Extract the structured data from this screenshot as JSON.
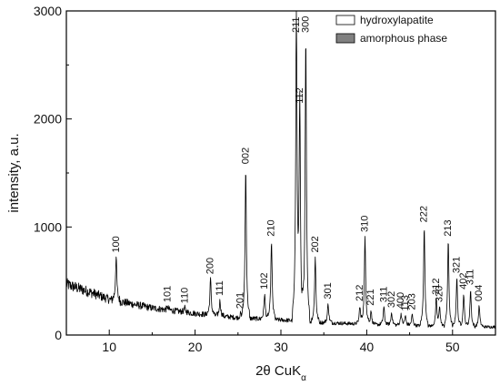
{
  "chart_data": {
    "type": "line",
    "xlabel_main": "2θ CuK",
    "xlabel_sub": "α",
    "ylabel": "intensity, a.u.",
    "xlim": [
      5,
      55
    ],
    "ylim": [
      0,
      3000
    ],
    "x_ticks": [
      10,
      20,
      30,
      40,
      50
    ],
    "y_ticks": [
      0,
      1000,
      2000,
      3000
    ],
    "grid": false,
    "legend_position": "top-right",
    "legend": [
      {
        "label": "hydroxylapatite",
        "swatch": "#ffffff"
      },
      {
        "label": "amorphous phase",
        "swatch": "#808080"
      }
    ],
    "baseline": {
      "x": [
        5,
        8,
        10,
        15,
        20,
        25,
        30,
        35,
        40,
        45,
        50,
        55
      ],
      "y": [
        470,
        390,
        330,
        250,
        200,
        160,
        140,
        115,
        100,
        90,
        80,
        75
      ]
    },
    "peaks": [
      {
        "label": "100",
        "x": 10.8,
        "y": 720
      },
      {
        "label": "101",
        "x": 16.8,
        "y": 260
      },
      {
        "label": "110",
        "x": 18.8,
        "y": 250
      },
      {
        "label": "200",
        "x": 21.8,
        "y": 520
      },
      {
        "label": "111",
        "x": 22.9,
        "y": 320
      },
      {
        "label": "201",
        "x": 25.3,
        "y": 200
      },
      {
        "label": "002",
        "x": 25.9,
        "y": 1540
      },
      {
        "label": "102",
        "x": 28.1,
        "y": 380
      },
      {
        "label": "210",
        "x": 28.9,
        "y": 870
      },
      {
        "label": "211",
        "x": 31.8,
        "y": 3000
      },
      {
        "label": "112",
        "x": 32.2,
        "y": 2100
      },
      {
        "label": "300",
        "x": 32.9,
        "y": 2760
      },
      {
        "label": "202",
        "x": 34.0,
        "y": 720
      },
      {
        "label": "301",
        "x": 35.5,
        "y": 290
      },
      {
        "label": "212",
        "x": 39.2,
        "y": 270
      },
      {
        "label": "310",
        "x": 39.8,
        "y": 910
      },
      {
        "label": "221",
        "x": 40.5,
        "y": 230
      },
      {
        "label": "311",
        "x": 42.0,
        "y": 260
      },
      {
        "label": "302",
        "x": 42.9,
        "y": 210
      },
      {
        "label": "400",
        "x": 44.0,
        "y": 200
      },
      {
        "label": "113",
        "x": 44.5,
        "y": 180
      },
      {
        "label": "203",
        "x": 45.3,
        "y": 190
      },
      {
        "label": "222",
        "x": 46.7,
        "y": 1000
      },
      {
        "label": "312",
        "x": 48.1,
        "y": 330
      },
      {
        "label": "320",
        "x": 48.5,
        "y": 260
      },
      {
        "label": "213",
        "x": 49.5,
        "y": 870
      },
      {
        "label": "321",
        "x": 50.5,
        "y": 530
      },
      {
        "label": "402",
        "x": 51.3,
        "y": 380
      },
      {
        "label": "311",
        "x": 52.1,
        "y": 420
      },
      {
        "label": "004",
        "x": 53.1,
        "y": 270
      }
    ]
  }
}
